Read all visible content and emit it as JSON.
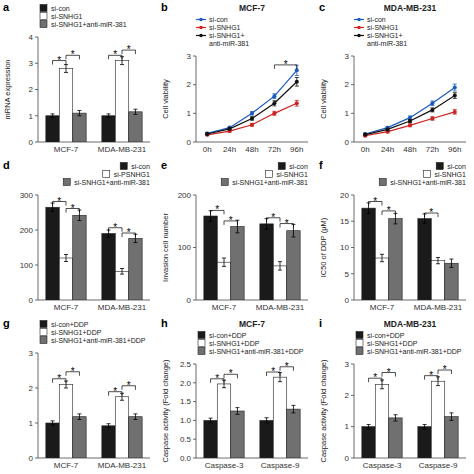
{
  "chart_data": [
    {
      "type": "bar",
      "ylabel": "mRNA expression",
      "categories": [
        "MCF-7",
        "MDA-MB-231"
      ],
      "series": [
        {
          "name": "si-con",
          "color": "#1a1a1a",
          "values": [
            1.0,
            1.0
          ],
          "errors": [
            0.07,
            0.07
          ]
        },
        {
          "name": "si-SNHG1",
          "color": "#ffffff",
          "values": [
            2.8,
            3.1
          ],
          "errors": [
            0.15,
            0.15
          ]
        },
        {
          "name": "si-SNHG1+anti-miR-381",
          "color": "#707070",
          "values": [
            1.1,
            1.15
          ],
          "errors": [
            0.1,
            0.1
          ]
        }
      ],
      "ylim": [
        0,
        4
      ],
      "yticks": [
        0,
        1,
        2,
        3,
        4
      ],
      "legend": "upper left",
      "annotations": [
        {
          "text": "a"
        },
        {
          "text": "*",
          "category": "MCF-7",
          "between": [
            "si-con",
            "si-SNHG1"
          ],
          "y": 2.95
        },
        {
          "text": "*",
          "category": "MCF-7",
          "between": [
            "si-SNHG1",
            "si-SNHG1+anti-miR-381"
          ],
          "y": 3.15
        },
        {
          "text": "*",
          "category": "MDA-MB-231",
          "between": [
            "si-con",
            "si-SNHG1"
          ],
          "y": 3.15
        },
        {
          "text": "*",
          "category": "MDA-MB-231",
          "between": [
            "si-SNHG1",
            "si-SNHG1+anti-miR-381"
          ],
          "y": 3.35
        }
      ]
    },
    {
      "type": "line",
      "title": "MCF-7",
      "ylabel": "Cell viability",
      "categories": [
        "0h",
        "24h",
        "48h",
        "72h",
        "96h"
      ],
      "marker": "circle",
      "series": [
        {
          "name": "si-con",
          "color": "#1a5abf",
          "values": [
            0.3,
            0.5,
            1.0,
            1.6,
            2.5
          ],
          "errors": [
            0.04,
            0.05,
            0.06,
            0.08,
            0.18
          ]
        },
        {
          "name": "si-SNHG1",
          "color": "#cc2222",
          "values": [
            0.25,
            0.38,
            0.6,
            1.0,
            1.35
          ],
          "errors": [
            0.03,
            0.04,
            0.05,
            0.07,
            0.1
          ]
        },
        {
          "name": "si-SNHG1+\nanti-miR-381",
          "color": "#111111",
          "values": [
            0.28,
            0.46,
            0.82,
            1.35,
            2.1
          ],
          "errors": [
            0.03,
            0.04,
            0.06,
            0.09,
            0.15
          ]
        }
      ],
      "ylim": [
        0,
        3
      ],
      "yticks": [
        0,
        1,
        2,
        3
      ],
      "legend": "upper left",
      "annotations": [
        {
          "text": "b"
        },
        {
          "text": "*",
          "between": [
            "72h",
            "96h"
          ],
          "y": 2.55
        }
      ]
    },
    {
      "type": "line",
      "title": "MDA-MB-231",
      "ylabel": "Cell viability",
      "categories": [
        "0h",
        "24h",
        "48h",
        "72h",
        "96h"
      ],
      "marker": "circle",
      "series": [
        {
          "name": "si-con",
          "color": "#1a5abf",
          "values": [
            0.28,
            0.5,
            0.85,
            1.35,
            1.9
          ],
          "errors": [
            0.03,
            0.04,
            0.06,
            0.08,
            0.12
          ]
        },
        {
          "name": "si-SNHG1",
          "color": "#cc2222",
          "values": [
            0.22,
            0.36,
            0.58,
            0.82,
            1.05
          ],
          "errors": [
            0.03,
            0.04,
            0.05,
            0.06,
            0.08
          ]
        },
        {
          "name": "si-SNHG1+\nanti-miR-381",
          "color": "#111111",
          "values": [
            0.26,
            0.44,
            0.73,
            1.12,
            1.62
          ],
          "errors": [
            0.03,
            0.04,
            0.05,
            0.07,
            0.1
          ]
        }
      ],
      "ylim": [
        0,
        3
      ],
      "yticks": [
        0,
        1,
        2,
        3
      ],
      "legend": "upper left",
      "annotations": [
        {
          "text": "c"
        }
      ]
    },
    {
      "type": "bar",
      "categories": [
        "MCF-7",
        "MDA-MB-231"
      ],
      "series": [
        {
          "name": "si-con",
          "color": "#1a1a1a",
          "values": [
            265,
            190
          ],
          "errors": [
            12,
            10
          ]
        },
        {
          "name": "si-PSNHG1",
          "color": "#ffffff",
          "values": [
            120,
            82
          ],
          "errors": [
            10,
            8
          ]
        },
        {
          "name": "si-SNHG1+anti-miR-381",
          "color": "#707070",
          "values": [
            242,
            176
          ],
          "errors": [
            15,
            12
          ]
        }
      ],
      "ylim": [
        0,
        300
      ],
      "yticks": [
        0,
        100,
        200,
        300
      ],
      "legend": "upper right",
      "annotations": [
        {
          "text": "d"
        },
        {
          "text": "*",
          "category": "MCF-7",
          "between": [
            "si-con",
            "si-PSNHG1"
          ],
          "y": 270
        },
        {
          "text": "*",
          "category": "MCF-7",
          "between": [
            "si-PSNHG1",
            "si-SNHG1+anti-miR-381"
          ],
          "y": 250
        },
        {
          "text": "*",
          "category": "MDA-MB-231",
          "between": [
            "si-con",
            "si-PSNHG1"
          ],
          "y": 195
        },
        {
          "text": "*",
          "category": "MDA-MB-231",
          "between": [
            "si-PSNHG1",
            "si-SNHG1+anti-miR-381"
          ],
          "y": 180
        }
      ]
    },
    {
      "type": "bar",
      "ylabel": "Invasion cell number",
      "categories": [
        "MCF-7",
        "MDA-MB-231"
      ],
      "series": [
        {
          "name": "si-con",
          "color": "#1a1a1a",
          "values": [
            160,
            145
          ],
          "errors": [
            10,
            10
          ]
        },
        {
          "name": "si-SNHG1",
          "color": "#ffffff",
          "values": [
            72,
            65
          ],
          "errors": [
            8,
            8
          ]
        },
        {
          "name": "si-SNHG1+anti-miR-381",
          "color": "#707070",
          "values": [
            140,
            132
          ],
          "errors": [
            12,
            12
          ]
        }
      ],
      "ylim": [
        0,
        200
      ],
      "yticks": [
        0,
        100,
        200
      ],
      "legend": "upper right",
      "annotations": [
        {
          "text": "e"
        },
        {
          "text": "*",
          "category": "MCF-7",
          "between": [
            "si-con",
            "si-SNHG1"
          ],
          "y": 163
        },
        {
          "text": "*",
          "category": "MCF-7",
          "between": [
            "si-SNHG1",
            "si-SNHG1+anti-miR-381"
          ],
          "y": 143
        },
        {
          "text": "*",
          "category": "MDA-MB-231",
          "between": [
            "si-con",
            "si-SNHG1"
          ],
          "y": 149
        },
        {
          "text": "*",
          "category": "MDA-MB-231",
          "between": [
            "si-SNHG1",
            "si-SNHG1+anti-miR-381"
          ],
          "y": 138
        }
      ]
    },
    {
      "type": "bar",
      "ylabel": "IC50 of DDP (μM)",
      "categories": [
        "MCF-7",
        "MDA-MB-231"
      ],
      "series": [
        {
          "name": "si-con",
          "color": "#1a1a1a",
          "values": [
            17.5,
            15.5
          ],
          "errors": [
            1.0,
            0.9
          ]
        },
        {
          "name": "si-SNHG1",
          "color": "#ffffff",
          "values": [
            8.0,
            7.5
          ],
          "errors": [
            0.7,
            0.6
          ]
        },
        {
          "name": "si-SNHG1+anti-miR-381",
          "color": "#707070",
          "values": [
            15.5,
            7.0
          ],
          "errors": [
            1.0,
            0.8
          ]
        }
      ],
      "ylim": [
        0,
        20
      ],
      "yticks": [
        0,
        5,
        10,
        15,
        20
      ],
      "legend": "upper right",
      "annotations": [
        {
          "text": "f"
        },
        {
          "text": "*",
          "category": "MCF-7",
          "between": [
            "si-con",
            "si-SNHG1"
          ],
          "y": 18.0
        },
        {
          "text": "*",
          "category": "MCF-7",
          "between": [
            "si-SNHG1",
            "si-SNHG1+anti-miR-381"
          ],
          "y": 16.2
        },
        {
          "text": "*",
          "category": "MDA-MB-231",
          "between": [
            "si-con",
            "si-SNHG1"
          ],
          "y": 15.8
        }
      ]
    },
    {
      "type": "bar",
      "categories": [
        "MCF-7",
        "MDA-MB-231"
      ],
      "series": [
        {
          "name": "si-con+DDP",
          "color": "#1a1a1a",
          "values": [
            1.0,
            0.92
          ],
          "errors": [
            0.06,
            0.06
          ]
        },
        {
          "name": "si-SNHG1+DDP",
          "color": "#ffffff",
          "values": [
            2.1,
            1.75
          ],
          "errors": [
            0.1,
            0.1
          ]
        },
        {
          "name": "si-SNHG1+anti-miR-381+DDP",
          "color": "#707070",
          "values": [
            1.18,
            1.18
          ],
          "errors": [
            0.08,
            0.08
          ]
        }
      ],
      "ylim": [
        0,
        3
      ],
      "yticks": [
        0,
        1,
        2,
        3
      ],
      "legend": "upper left",
      "annotations": [
        {
          "text": "g"
        },
        {
          "text": "*",
          "category": "MCF-7",
          "between": [
            "si-con+DDP",
            "si-SNHG1+DDP"
          ],
          "y": 2.15
        },
        {
          "text": "*",
          "category": "MCF-7",
          "between": [
            "si-SNHG1+DDP",
            "si-SNHG1+anti-miR-381+DDP"
          ],
          "y": 2.35
        },
        {
          "text": "*",
          "category": "MDA-MB-231",
          "between": [
            "si-con+DDP",
            "si-SNHG1+DDP"
          ],
          "y": 1.78
        },
        {
          "text": "*",
          "category": "MDA-MB-231",
          "between": [
            "si-SNHG1+DDP",
            "si-SNHG1+anti-miR-381+DDP"
          ],
          "y": 1.95
        }
      ]
    },
    {
      "type": "bar",
      "title": "MCF-7",
      "ylabel": "Caspase activity (Fold change)",
      "categories": [
        "Caspase-3",
        "Caspase-9"
      ],
      "series": [
        {
          "name": "si-con+DDP",
          "color": "#1a1a1a",
          "values": [
            1.0,
            1.0
          ],
          "errors": [
            0.06,
            0.07
          ]
        },
        {
          "name": "si-SNHG1+DDP",
          "color": "#ffffff",
          "values": [
            1.97,
            2.15
          ],
          "errors": [
            0.1,
            0.12
          ]
        },
        {
          "name": "si-SNHG1+anti-miR-381+DDP",
          "color": "#707070",
          "values": [
            1.25,
            1.3
          ],
          "errors": [
            0.09,
            0.1
          ]
        }
      ],
      "ylim": [
        0,
        2.5
      ],
      "yticks": [
        {
          "value": 0,
          "label": "0.0"
        },
        0.5,
        {
          "value": 1,
          "label": "1.0"
        },
        1.5,
        {
          "value": 2,
          "label": "2.0"
        },
        2.5
      ],
      "legend": "upper left",
      "annotations": [
        {
          "text": "h"
        },
        {
          "text": "*",
          "category": "Caspase-3",
          "between": [
            "si-con+DDP",
            "si-SNHG1+DDP"
          ],
          "y": 2.0
        },
        {
          "text": "*",
          "category": "Caspase-3",
          "between": [
            "si-SNHG1+DDP",
            "si-SNHG1+anti-miR-381+DDP"
          ],
          "y": 2.12
        },
        {
          "text": "*",
          "category": "Caspase-9",
          "between": [
            "si-con+DDP",
            "si-SNHG1+DDP"
          ],
          "y": 2.18
        },
        {
          "text": "*",
          "category": "Caspase-9",
          "between": [
            "si-SNHG1+DDP",
            "si-SNHG1+anti-miR-381+DDP"
          ],
          "y": 2.32
        }
      ]
    },
    {
      "type": "bar",
      "title": "MDA-MB-231",
      "ylabel": "Caspase activity (Fold change)",
      "categories": [
        "Caspase-3",
        "Caspase-9"
      ],
      "series": [
        {
          "name": "si-con+DDP",
          "color": "#1a1a1a",
          "values": [
            1.0,
            1.0
          ],
          "errors": [
            0.07,
            0.07
          ]
        },
        {
          "name": "si-SNHG1+DDP",
          "color": "#ffffff",
          "values": [
            2.35,
            2.45
          ],
          "errors": [
            0.14,
            0.14
          ]
        },
        {
          "name": "si-SNHG1+anti-miR-381+DDP",
          "color": "#707070",
          "values": [
            1.28,
            1.32
          ],
          "errors": [
            0.1,
            0.12
          ]
        }
      ],
      "ylim": [
        0,
        3
      ],
      "yticks": [
        0,
        1,
        2,
        3
      ],
      "legend": "upper left",
      "annotations": [
        {
          "text": "i"
        },
        {
          "text": "*",
          "category": "Caspase-3",
          "between": [
            "si-con+DDP",
            "si-SNHG1+DDP"
          ],
          "y": 2.42
        },
        {
          "text": "*",
          "category": "Caspase-3",
          "between": [
            "si-SNHG1+DDP",
            "si-SNHG1+anti-miR-381+DDP"
          ],
          "y": 2.6
        },
        {
          "text": "*",
          "category": "Caspase-9",
          "between": [
            "si-con+DDP",
            "si-SNHG1+DDP"
          ],
          "y": 2.5
        },
        {
          "text": "*",
          "category": "Caspase-9",
          "between": [
            "si-SNHG1+DDP",
            "si-SNHG1+anti-miR-381+DDP"
          ],
          "y": 2.68
        }
      ]
    }
  ]
}
